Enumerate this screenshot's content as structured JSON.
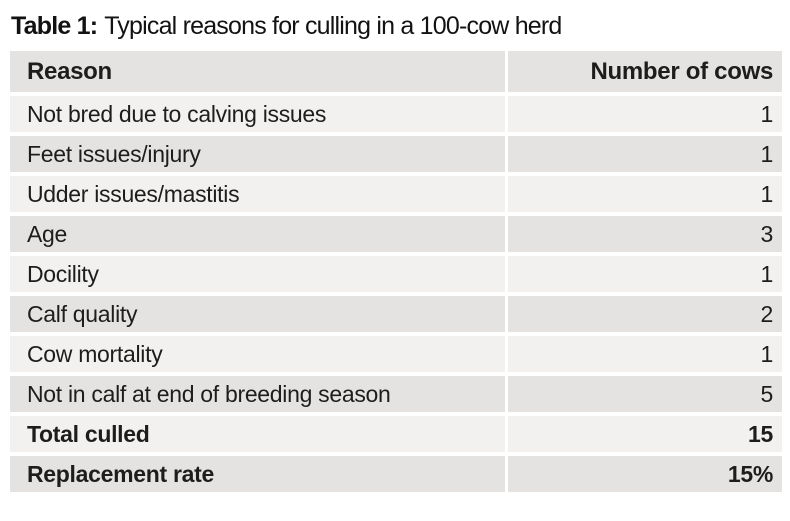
{
  "title": {
    "prefix": "Table 1:",
    "text": "Typical reasons for culling in a 100-cow herd"
  },
  "table": {
    "headers": {
      "reason": "Reason",
      "count": "Number of cows"
    },
    "rows": [
      {
        "reason": "Not bred due to calving issues",
        "count": "1"
      },
      {
        "reason": "Feet issues/injury",
        "count": "1"
      },
      {
        "reason": "Udder issues/mastitis",
        "count": "1"
      },
      {
        "reason": "Age",
        "count": "3"
      },
      {
        "reason": "Docility",
        "count": "1"
      },
      {
        "reason": "Calf quality",
        "count": "2"
      },
      {
        "reason": "Cow mortality",
        "count": "1"
      },
      {
        "reason": "Not in calf at end of breeding season",
        "count": "5"
      }
    ],
    "summary": [
      {
        "reason": "Total culled",
        "count": "15"
      },
      {
        "reason": "Replacement rate",
        "count": "15%"
      }
    ]
  },
  "colors": {
    "row_light": "#f2f1ef",
    "row_dark": "#e4e3e1",
    "text": "#1d1d1b",
    "page_background": "#ffffff"
  }
}
